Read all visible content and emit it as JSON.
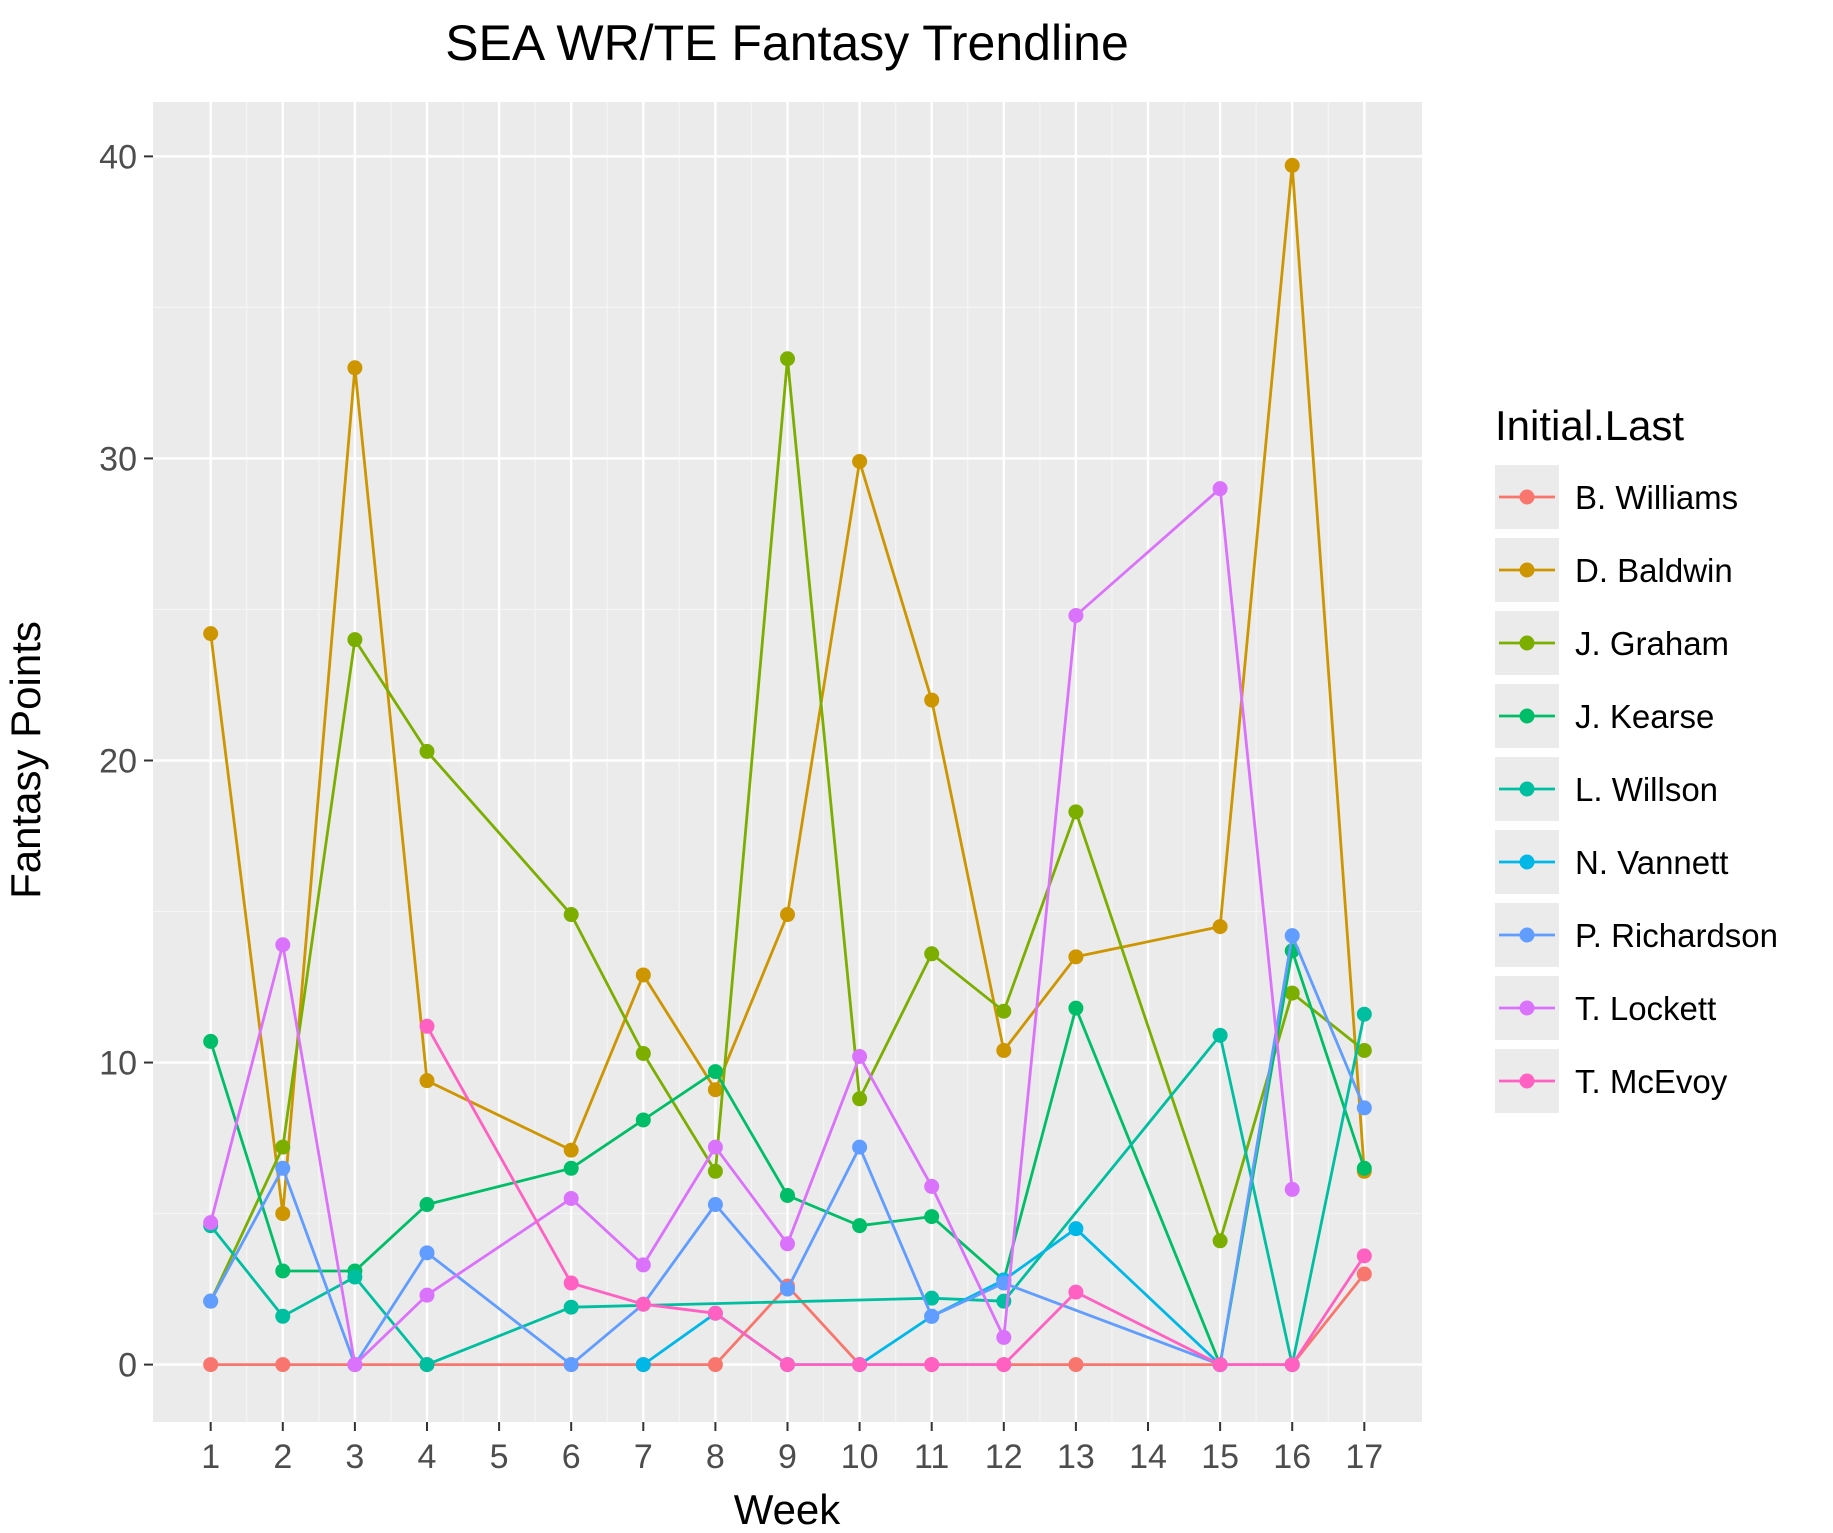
{
  "chart_data": {
    "type": "line",
    "title": "SEA WR/TE Fantasy Trendline",
    "xlabel": "Week",
    "ylabel": "Fantasy Points",
    "x": [
      1,
      2,
      3,
      4,
      5,
      6,
      7,
      8,
      9,
      10,
      11,
      12,
      13,
      14,
      15,
      16,
      17
    ],
    "x_tick_labels": [
      "1",
      "2",
      "3",
      "4",
      "5",
      "6",
      "7",
      "8",
      "9",
      "10",
      "11",
      "12",
      "13",
      "14",
      "15",
      "16",
      "17"
    ],
    "xlim": [
      0.2,
      17.8
    ],
    "ylim": [
      -1.9,
      41.8
    ],
    "y_ticks": [
      0,
      10,
      20,
      30,
      40
    ],
    "y_tick_labels": [
      "0",
      "10",
      "20",
      "30",
      "40"
    ],
    "grid": true,
    "legend": {
      "title": "Initial.Last",
      "position": "right"
    },
    "series": [
      {
        "name": "B. Williams",
        "color": "#F8766D",
        "points": [
          [
            1,
            0
          ],
          [
            2,
            0
          ],
          [
            3,
            0
          ],
          [
            4,
            0
          ],
          [
            6,
            0
          ],
          [
            7,
            0
          ],
          [
            8,
            0
          ],
          [
            9,
            2.6
          ],
          [
            10,
            0
          ],
          [
            11,
            0
          ],
          [
            12,
            0
          ],
          [
            13,
            0
          ],
          [
            15,
            0
          ],
          [
            16,
            0
          ],
          [
            17,
            3.0
          ]
        ]
      },
      {
        "name": "D. Baldwin",
        "color": "#CD9600",
        "points": [
          [
            1,
            24.2
          ],
          [
            2,
            5.0
          ],
          [
            3,
            33.0
          ],
          [
            4,
            9.4
          ],
          [
            6,
            7.1
          ],
          [
            7,
            12.9
          ],
          [
            8,
            9.1
          ],
          [
            9,
            14.9
          ],
          [
            10,
            29.9
          ],
          [
            11,
            22.0
          ],
          [
            12,
            10.4
          ],
          [
            13,
            13.5
          ],
          [
            15,
            14.5
          ],
          [
            16,
            39.7
          ],
          [
            17,
            6.4
          ]
        ]
      },
      {
        "name": "J. Graham",
        "color": "#7CAE00",
        "points": [
          [
            1,
            2.1
          ],
          [
            2,
            7.2
          ],
          [
            3,
            24.0
          ],
          [
            4,
            20.3
          ],
          [
            6,
            14.9
          ],
          [
            7,
            10.3
          ],
          [
            8,
            6.4
          ],
          [
            9,
            33.3
          ],
          [
            10,
            8.8
          ],
          [
            11,
            13.6
          ],
          [
            12,
            11.7
          ],
          [
            13,
            18.3
          ],
          [
            15,
            4.1
          ],
          [
            16,
            12.3
          ],
          [
            17,
            10.4
          ]
        ]
      },
      {
        "name": "J. Kearse",
        "color": "#00BE67",
        "points": [
          [
            1,
            10.7
          ],
          [
            2,
            3.1
          ],
          [
            3,
            3.1
          ],
          [
            4,
            5.3
          ],
          [
            6,
            6.5
          ],
          [
            7,
            8.1
          ],
          [
            8,
            9.7
          ],
          [
            9,
            5.6
          ],
          [
            10,
            4.6
          ],
          [
            11,
            4.9
          ],
          [
            12,
            2.8
          ],
          [
            13,
            11.8
          ],
          [
            15,
            0
          ],
          [
            16,
            13.7
          ],
          [
            17,
            6.5
          ]
        ]
      },
      {
        "name": "L. Willson",
        "color": "#00BFA0",
        "points": [
          [
            1,
            4.6
          ],
          [
            2,
            1.6
          ],
          [
            3,
            2.9
          ],
          [
            4,
            0
          ],
          [
            6,
            1.9
          ],
          [
            11,
            2.2
          ],
          [
            12,
            2.1
          ],
          [
            15,
            10.9
          ],
          [
            16,
            0
          ],
          [
            17,
            11.6
          ]
        ]
      },
      {
        "name": "N. Vannett",
        "color": "#00B8E7",
        "points": [
          [
            7,
            0
          ],
          [
            8,
            1.7
          ],
          [
            9,
            0
          ],
          [
            10,
            0
          ],
          [
            11,
            1.6
          ],
          [
            12,
            2.8
          ],
          [
            13,
            4.5
          ],
          [
            15,
            0
          ]
        ]
      },
      {
        "name": "P. Richardson",
        "color": "#619CFF",
        "points": [
          [
            1,
            2.1
          ],
          [
            2,
            6.5
          ],
          [
            3,
            0
          ],
          [
            4,
            3.7
          ],
          [
            6,
            0
          ],
          [
            7,
            2.0
          ],
          [
            8,
            5.3
          ],
          [
            9,
            2.5
          ],
          [
            10,
            7.2
          ],
          [
            11,
            1.6
          ],
          [
            12,
            2.7
          ],
          [
            15,
            0
          ],
          [
            16,
            14.2
          ],
          [
            17,
            8.5
          ]
        ]
      },
      {
        "name": "T. Lockett",
        "color": "#DB72FB",
        "points": [
          [
            1,
            4.7
          ],
          [
            2,
            13.9
          ],
          [
            3,
            0
          ],
          [
            4,
            2.3
          ],
          [
            6,
            5.5
          ],
          [
            7,
            3.3
          ],
          [
            8,
            7.2
          ],
          [
            9,
            4.0
          ],
          [
            10,
            10.2
          ],
          [
            11,
            5.9
          ],
          [
            12,
            0.9
          ],
          [
            13,
            24.8
          ],
          [
            15,
            29.0
          ],
          [
            16,
            5.8
          ]
        ]
      },
      {
        "name": "T. McEvoy",
        "color": "#FF61C3",
        "points": [
          [
            4,
            11.2
          ],
          [
            6,
            2.7
          ],
          [
            7,
            2.0
          ],
          [
            8,
            1.7
          ],
          [
            9,
            0
          ],
          [
            10,
            0
          ],
          [
            11,
            0
          ],
          [
            12,
            0
          ],
          [
            13,
            2.4
          ],
          [
            15,
            0
          ],
          [
            16,
            0
          ],
          [
            17,
            3.6
          ]
        ]
      }
    ]
  }
}
